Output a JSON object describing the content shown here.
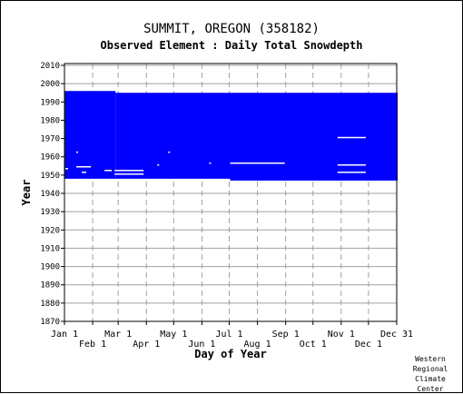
{
  "chart_data": {
    "type": "heatmap",
    "title": "SUMMIT, OREGON   (358182)",
    "subtitle": "Observed Element : Daily Total Snowdepth",
    "xlabel": "Day of Year",
    "ylabel": "Year",
    "xlim": [
      1,
      366
    ],
    "ylim": [
      1870,
      2011
    ],
    "y_ticks": [
      1870,
      1880,
      1890,
      1900,
      1910,
      1920,
      1930,
      1940,
      1950,
      1960,
      1970,
      1980,
      1990,
      2000,
      2010
    ],
    "x_ticks": [
      {
        "label": "Jan 1",
        "day": 1,
        "row": 0
      },
      {
        "label": "Feb 1",
        "day": 32,
        "row": 1
      },
      {
        "label": "Mar 1",
        "day": 60,
        "row": 0
      },
      {
        "label": "Apr 1",
        "day": 91,
        "row": 1
      },
      {
        "label": "May 1",
        "day": 121,
        "row": 0
      },
      {
        "label": "Jun 1",
        "day": 152,
        "row": 1
      },
      {
        "label": "Jul 1",
        "day": 182,
        "row": 0
      },
      {
        "label": "Aug 1",
        "day": 213,
        "row": 1
      },
      {
        "label": "Sep 1",
        "day": 244,
        "row": 0
      },
      {
        "label": "Oct 1",
        "day": 274,
        "row": 1
      },
      {
        "label": "Nov 1",
        "day": 305,
        "row": 0
      },
      {
        "label": "Dec 1",
        "day": 335,
        "row": 1
      },
      {
        "label": "Dec 31",
        "day": 366,
        "row": 0
      }
    ],
    "grid": true,
    "data_color": "#0000ff",
    "grid_color": "#a0a0a0",
    "coverage": [
      {
        "day_start": 1,
        "day_end": 56,
        "year_start": 1948,
        "year_end": 1995
      },
      {
        "day_start": 57,
        "day_end": 182,
        "year_start": 1948,
        "year_end": 1994
      },
      {
        "day_start": 183,
        "day_end": 366,
        "year_start": 1947,
        "year_end": 1994
      }
    ],
    "gaps": [
      {
        "day_start": 14,
        "day_end": 29,
        "year": 1954
      },
      {
        "day_start": 14,
        "day_end": 15,
        "year": 1962
      },
      {
        "day_start": 2,
        "day_end": 4,
        "year": 1953
      },
      {
        "day_start": 20,
        "day_end": 24,
        "year": 1951
      },
      {
        "day_start": 45,
        "day_end": 52,
        "year": 1952
      },
      {
        "day_start": 56,
        "day_end": 87,
        "year": 1952
      },
      {
        "day_start": 56,
        "day_end": 87,
        "year": 1950
      },
      {
        "day_start": 103,
        "day_end": 104,
        "year": 1955
      },
      {
        "day_start": 115,
        "day_end": 116,
        "year": 1962
      },
      {
        "day_start": 160,
        "day_end": 161,
        "year": 1956
      },
      {
        "day_start": 183,
        "day_end": 242,
        "year": 1956
      },
      {
        "day_start": 301,
        "day_end": 331,
        "year": 1970
      },
      {
        "day_start": 301,
        "day_end": 331,
        "year": 1955
      },
      {
        "day_start": 301,
        "day_end": 331,
        "year": 1951
      }
    ]
  },
  "credit": [
    "Western",
    "Regional",
    "Climate",
    "Center"
  ]
}
